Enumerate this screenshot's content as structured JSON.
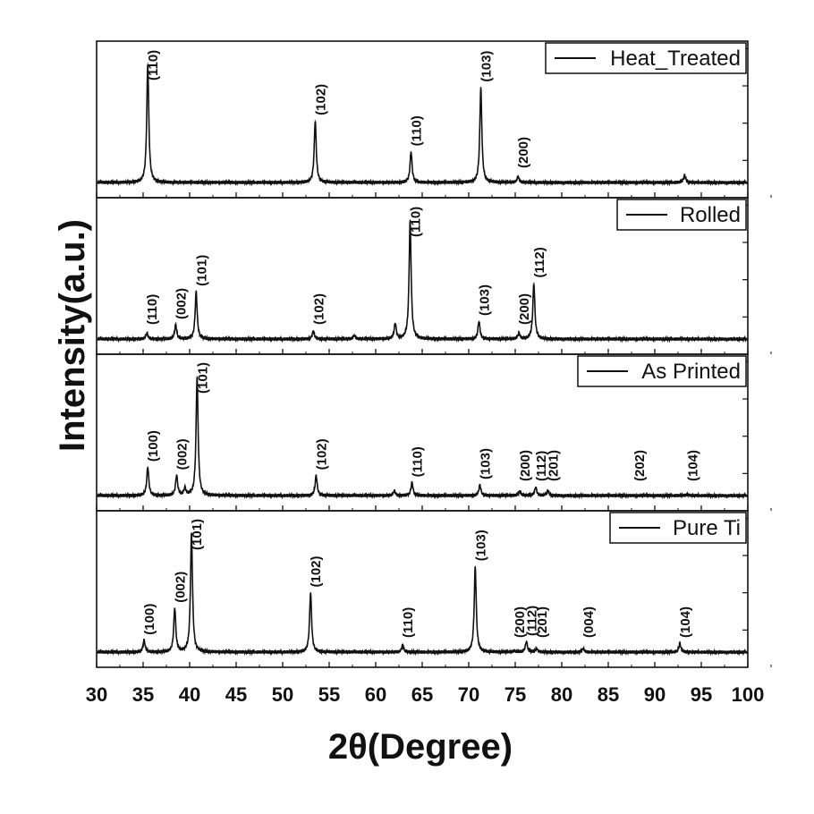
{
  "chart_data": {
    "type": "line",
    "xlabel": "2θ(Degree)",
    "ylabel": "Intensity(a.u.)",
    "xlim": [
      30,
      100
    ],
    "xticks": [
      30,
      35,
      40,
      45,
      50,
      55,
      60,
      65,
      70,
      75,
      80,
      85,
      90,
      95,
      100
    ],
    "grid": false,
    "legend": "top-right of each panel",
    "line_color": "#111111",
    "series": [
      {
        "name": "Heat_Treated",
        "peaks": [
          {
            "x": 35.5,
            "y": 1.0,
            "label": "(110)"
          },
          {
            "x": 53.5,
            "y": 0.52,
            "label": "(102)"
          },
          {
            "x": 63.8,
            "y": 0.26,
            "label": "(110)"
          },
          {
            "x": 71.3,
            "y": 0.8,
            "label": "(103)"
          },
          {
            "x": 75.3,
            "y": 0.05,
            "label": "(200)"
          },
          {
            "x": 93.2,
            "y": 0.06,
            "label": ""
          }
        ]
      },
      {
        "name": "Rolled",
        "peaks": [
          {
            "x": 35.4,
            "y": 0.05,
            "label": "(110)"
          },
          {
            "x": 38.5,
            "y": 0.12,
            "label": "(002)"
          },
          {
            "x": 40.7,
            "y": 0.4,
            "label": "(101)"
          },
          {
            "x": 53.3,
            "y": 0.07,
            "label": "(102)"
          },
          {
            "x": 57.7,
            "y": 0.03,
            "label": ""
          },
          {
            "x": 62.1,
            "y": 0.13,
            "label": ""
          },
          {
            "x": 63.7,
            "y": 1.0,
            "label": "(110)"
          },
          {
            "x": 71.1,
            "y": 0.15,
            "label": "(103)"
          },
          {
            "x": 75.4,
            "y": 0.05,
            "label": "(200)"
          },
          {
            "x": 77.0,
            "y": 0.47,
            "label": "(112)"
          }
        ]
      },
      {
        "name": "As Printed",
        "peaks": [
          {
            "x": 35.5,
            "y": 0.24,
            "label": "(100)"
          },
          {
            "x": 38.6,
            "y": 0.17,
            "label": "(002)"
          },
          {
            "x": 39.5,
            "y": 0.06,
            "label": ""
          },
          {
            "x": 40.8,
            "y": 1.0,
            "label": "(101)"
          },
          {
            "x": 53.6,
            "y": 0.17,
            "label": "(102)"
          },
          {
            "x": 62.0,
            "y": 0.04,
            "label": ""
          },
          {
            "x": 63.9,
            "y": 0.11,
            "label": "(110)"
          },
          {
            "x": 71.2,
            "y": 0.09,
            "label": "(103)"
          },
          {
            "x": 75.5,
            "y": 0.04,
            "label": "(200)"
          },
          {
            "x": 77.2,
            "y": 0.07,
            "label": "(112)"
          },
          {
            "x": 78.5,
            "y": 0.04,
            "label": "(201)"
          },
          {
            "x": 87.8,
            "y": 0.0,
            "label": "(202)"
          },
          {
            "x": 93.5,
            "y": 0.01,
            "label": "(104)"
          }
        ]
      },
      {
        "name": "Pure Ti",
        "peaks": [
          {
            "x": 35.1,
            "y": 0.1,
            "label": "(100)"
          },
          {
            "x": 38.4,
            "y": 0.37,
            "label": "(002)"
          },
          {
            "x": 40.2,
            "y": 1.0,
            "label": "(101)"
          },
          {
            "x": 53.0,
            "y": 0.5,
            "label": "(102)"
          },
          {
            "x": 62.9,
            "y": 0.06,
            "label": "(110)"
          },
          {
            "x": 70.7,
            "y": 0.72,
            "label": "(103)"
          },
          {
            "x": 74.9,
            "y": 0.01,
            "label": "(200)"
          },
          {
            "x": 76.2,
            "y": 0.09,
            "label": "(112)"
          },
          {
            "x": 77.3,
            "y": 0.03,
            "label": "(201)"
          },
          {
            "x": 82.3,
            "y": 0.03,
            "label": "(004)"
          },
          {
            "x": 92.7,
            "y": 0.07,
            "label": "(104)"
          }
        ]
      }
    ]
  }
}
